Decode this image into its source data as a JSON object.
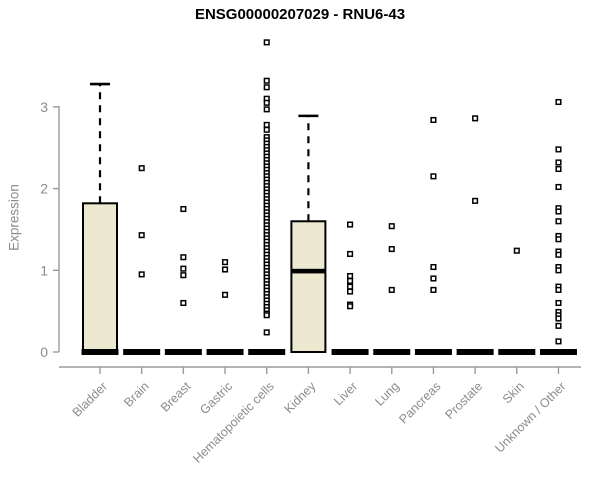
{
  "chart_data": {
    "type": "boxplot",
    "title": "ENSG00000207029 - RNU6-43",
    "ylabel": "Expression",
    "xlabel": "",
    "yticks": [
      0,
      1,
      2,
      3
    ],
    "ylim": [
      0,
      3.9
    ],
    "grid": false,
    "legend": "none",
    "categories": [
      "Bladder",
      "Brain",
      "Breast",
      "Gastric",
      "Hematopoietic cells",
      "Kidney",
      "Liver",
      "Lung",
      "Pancreas",
      "Prostate",
      "Skin",
      "Unknown / Other"
    ],
    "series": [
      {
        "category": "Bladder",
        "whisker_low": 0,
        "q1": 0,
        "median": 0,
        "q3": 1.82,
        "whisker_high": 3.28,
        "outliers": []
      },
      {
        "category": "Brain",
        "whisker_low": 0,
        "q1": 0,
        "median": 0,
        "q3": 0,
        "whisker_high": 0,
        "outliers": [
          2.25,
          1.43,
          0.95
        ]
      },
      {
        "category": "Breast",
        "whisker_low": 0,
        "q1": 0,
        "median": 0,
        "q3": 0,
        "whisker_high": 0,
        "outliers": [
          1.75,
          1.16,
          1.02,
          0.94,
          0.6
        ]
      },
      {
        "category": "Gastric",
        "whisker_low": 0,
        "q1": 0,
        "median": 0,
        "q3": 0,
        "whisker_high": 0,
        "outliers": [
          1.1,
          1.01,
          0.7
        ]
      },
      {
        "category": "Hematopoietic cells",
        "whisker_low": 0,
        "q1": 0,
        "median": 0,
        "q3": 0,
        "whisker_high": 0,
        "outliers": [
          3.79,
          3.32,
          3.24,
          3.1,
          3.05,
          2.97,
          2.78,
          2.72,
          2.63,
          2.59,
          2.55,
          2.51,
          2.47,
          2.43,
          2.39,
          2.35,
          2.31,
          2.27,
          2.23,
          2.19,
          2.15,
          2.11,
          2.07,
          2.03,
          1.99,
          1.95,
          1.91,
          1.87,
          1.83,
          1.79,
          1.75,
          1.71,
          1.67,
          1.63,
          1.59,
          1.55,
          1.51,
          1.47,
          1.43,
          1.39,
          1.35,
          1.31,
          1.27,
          1.23,
          1.19,
          1.15,
          1.11,
          1.07,
          1.03,
          0.99,
          0.95,
          0.91,
          0.87,
          0.83,
          0.79,
          0.75,
          0.71,
          0.67,
          0.63,
          0.59,
          0.55,
          0.51,
          0.47,
          0.45,
          0.24
        ]
      },
      {
        "category": "Kidney",
        "whisker_low": 0,
        "q1": 0,
        "median": 0.99,
        "q3": 1.6,
        "whisker_high": 2.89,
        "outliers": []
      },
      {
        "category": "Liver",
        "whisker_low": 0,
        "q1": 0,
        "median": 0,
        "q3": 0,
        "whisker_high": 0,
        "outliers": [
          1.56,
          1.2,
          0.93,
          0.87,
          0.8,
          0.74,
          0.58,
          0.56
        ]
      },
      {
        "category": "Lung",
        "whisker_low": 0,
        "q1": 0,
        "median": 0,
        "q3": 0,
        "whisker_high": 0,
        "outliers": [
          1.54,
          1.26,
          0.76
        ]
      },
      {
        "category": "Pancreas",
        "whisker_low": 0,
        "q1": 0,
        "median": 0,
        "q3": 0,
        "whisker_high": 0,
        "outliers": [
          2.84,
          2.15,
          1.04,
          0.9,
          0.76
        ]
      },
      {
        "category": "Prostate",
        "whisker_low": 0,
        "q1": 0,
        "median": 0,
        "q3": 0,
        "whisker_high": 0,
        "outliers": [
          2.86,
          1.85
        ]
      },
      {
        "category": "Skin",
        "whisker_low": 0,
        "q1": 0,
        "median": 0,
        "q3": 0,
        "whisker_high": 0,
        "outliers": [
          1.24
        ]
      },
      {
        "category": "Unknown / Other",
        "whisker_low": 0,
        "q1": 0,
        "median": 0,
        "q3": 0,
        "whisker_high": 0,
        "outliers": [
          3.06,
          2.48,
          2.32,
          2.24,
          2.02,
          1.76,
          1.72,
          1.6,
          1.42,
          1.38,
          1.23,
          1.19,
          1.04,
          1.0,
          0.8,
          0.76,
          0.6,
          0.49,
          0.45,
          0.41,
          0.32,
          0.13
        ]
      }
    ],
    "colors": {
      "box_fill": "#ede8d0",
      "box_border": "#000000",
      "median": "#000000",
      "whisker": "#000000",
      "outlier_fill": "#ffffff",
      "outlier_border": "#000000",
      "axis": "#9b9b9b",
      "tick_label": "#8c8c8c",
      "title": "#000000"
    }
  }
}
